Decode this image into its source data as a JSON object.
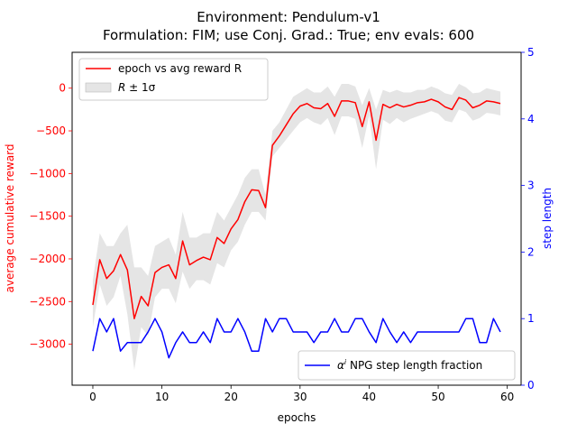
{
  "chart_data": {
    "type": "line",
    "title_line1": "Environment: Pendulum-v1",
    "title_line2": "Formulation: FIM; use Conj. Grad.: True; env evals: 600",
    "xlabel": "epochs",
    "ylabel_left": "average cumulative reward",
    "ylabel_right": "step length",
    "xlim": [
      -3,
      62
    ],
    "ylim_left": [
      -3480,
      420
    ],
    "ylim_right": [
      0,
      5
    ],
    "xticks": [
      0,
      10,
      20,
      30,
      40,
      50,
      60
    ],
    "yticks_left": [
      0,
      -500,
      -1000,
      -1500,
      -2000,
      -2500,
      -3000
    ],
    "yticks_right": [
      0,
      1,
      2,
      3,
      4,
      5
    ],
    "grid": false,
    "colors": {
      "reward": "#ff0000",
      "band": "#d3d3d3",
      "step": "#0000ff",
      "left_axis": "#ff0000",
      "right_axis": "#0000ff"
    },
    "legend_top": {
      "placement": "top-left",
      "entries": [
        {
          "label": "epoch vs avg reward R"
        },
        {
          "label_main": "R",
          "label_rest": " ± 1σ"
        }
      ]
    },
    "legend_bottom": {
      "placement": "bottom-right",
      "entries": [
        {
          "label_main": "α",
          "label_sup": "i",
          "label_rest": " NPG step length fraction"
        }
      ]
    },
    "x": [
      0,
      1,
      2,
      3,
      4,
      5,
      6,
      7,
      8,
      9,
      10,
      11,
      12,
      13,
      14,
      15,
      16,
      17,
      18,
      19,
      20,
      21,
      22,
      23,
      24,
      25,
      26,
      27,
      28,
      29,
      30,
      31,
      32,
      33,
      34,
      35,
      36,
      37,
      38,
      39,
      40,
      41,
      42,
      43,
      44,
      45,
      46,
      47,
      48,
      49,
      50,
      51,
      52,
      53,
      54,
      55,
      56,
      57,
      58,
      59
    ],
    "series": [
      {
        "name": "epoch vs avg reward R",
        "axis": "left",
        "values": [
          -2540,
          -2010,
          -2230,
          -2140,
          -1950,
          -2130,
          -2700,
          -2440,
          -2550,
          -2160,
          -2100,
          -2070,
          -2230,
          -1790,
          -2070,
          -2020,
          -1980,
          -2010,
          -1750,
          -1820,
          -1650,
          -1540,
          -1330,
          -1190,
          -1200,
          -1400,
          -670,
          -560,
          -430,
          -300,
          -210,
          -180,
          -230,
          -240,
          -180,
          -330,
          -150,
          -150,
          -170,
          -450,
          -160,
          -610,
          -190,
          -230,
          -190,
          -220,
          -200,
          -170,
          -160,
          -130,
          -160,
          -220,
          -250,
          -110,
          -140,
          -230,
          -200,
          -150,
          -160,
          -180
        ]
      },
      {
        "name": "R ± 1σ",
        "axis": "left",
        "type": "band",
        "lower": [
          -2800,
          -2300,
          -2550,
          -2450,
          -2200,
          -2650,
          -3300,
          -2800,
          -2900,
          -2450,
          -2350,
          -2350,
          -2520,
          -2150,
          -2350,
          -2250,
          -2250,
          -2300,
          -2050,
          -2100,
          -1900,
          -1800,
          -1600,
          -1450,
          -1450,
          -1550,
          -800,
          -700,
          -600,
          -500,
          -400,
          -350,
          -400,
          -430,
          -350,
          -550,
          -330,
          -330,
          -360,
          -700,
          -320,
          -950,
          -370,
          -420,
          -350,
          -400,
          -360,
          -330,
          -300,
          -270,
          -300,
          -380,
          -400,
          -250,
          -280,
          -380,
          -350,
          -290,
          -300,
          -320
        ],
        "upper": [
          -2250,
          -1700,
          -1850,
          -1850,
          -1700,
          -1600,
          -2100,
          -2100,
          -2200,
          -1850,
          -1800,
          -1750,
          -1950,
          -1450,
          -1750,
          -1750,
          -1700,
          -1700,
          -1450,
          -1550,
          -1400,
          -1250,
          -1050,
          -950,
          -950,
          -1250,
          -500,
          -400,
          -250,
          -100,
          -50,
          0,
          -50,
          -50,
          20,
          -100,
          50,
          50,
          20,
          -200,
          0,
          -250,
          -20,
          -50,
          -20,
          -50,
          -50,
          -20,
          -20,
          20,
          -10,
          -60,
          -80,
          50,
          10,
          -60,
          -50,
          0,
          -20,
          -40
        ]
      },
      {
        "name": "α^i NPG step length fraction",
        "axis": "right",
        "values": [
          0.512,
          1.0,
          0.8,
          1.0,
          0.512,
          0.64,
          0.64,
          0.64,
          0.8,
          1.0,
          0.8,
          0.41,
          0.64,
          0.8,
          0.64,
          0.64,
          0.8,
          0.64,
          1.0,
          0.8,
          0.8,
          1.0,
          0.8,
          0.512,
          0.512,
          1.0,
          0.8,
          1.0,
          1.0,
          0.8,
          0.8,
          0.8,
          0.64,
          0.8,
          0.8,
          1.0,
          0.8,
          0.8,
          1.0,
          1.0,
          0.8,
          0.64,
          1.0,
          0.8,
          0.64,
          0.8,
          0.64,
          0.8,
          0.8,
          0.8,
          0.8,
          0.8,
          0.8,
          0.8,
          1.0,
          1.0,
          0.64,
          0.64,
          1.0,
          0.8
        ]
      }
    ]
  }
}
